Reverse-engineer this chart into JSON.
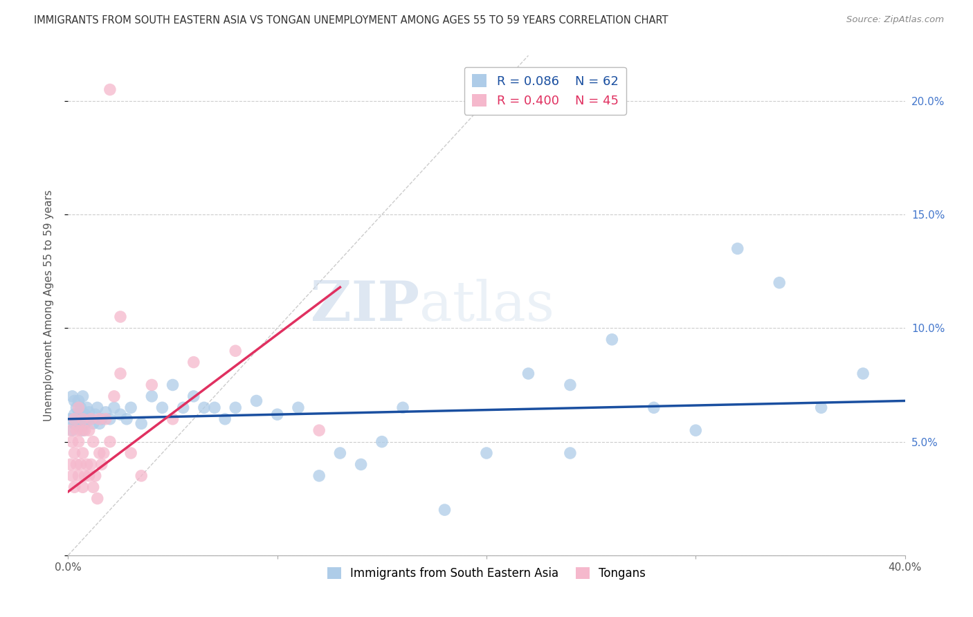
{
  "title": "IMMIGRANTS FROM SOUTH EASTERN ASIA VS TONGAN UNEMPLOYMENT AMONG AGES 55 TO 59 YEARS CORRELATION CHART",
  "source": "Source: ZipAtlas.com",
  "ylabel": "Unemployment Among Ages 55 to 59 years",
  "xlim": [
    0,
    0.4
  ],
  "ylim": [
    0,
    0.22
  ],
  "x_ticks": [
    0.0,
    0.1,
    0.2,
    0.3,
    0.4
  ],
  "x_tick_labels": [
    "0.0%",
    "",
    "",
    "",
    "40.0%"
  ],
  "y_ticks": [
    0.0,
    0.05,
    0.1,
    0.15,
    0.2
  ],
  "y_tick_labels_right": [
    "",
    "5.0%",
    "10.0%",
    "15.0%",
    "20.0%"
  ],
  "blue_R": 0.086,
  "blue_N": 62,
  "pink_R": 0.4,
  "pink_N": 45,
  "blue_color": "#aecce8",
  "pink_color": "#f5b8cc",
  "blue_line_color": "#1a4fa0",
  "pink_line_color": "#e03060",
  "diagonal_color": "#cccccc",
  "blue_x": [
    0.001,
    0.002,
    0.002,
    0.003,
    0.003,
    0.003,
    0.004,
    0.004,
    0.005,
    0.005,
    0.005,
    0.006,
    0.006,
    0.007,
    0.007,
    0.008,
    0.008,
    0.009,
    0.009,
    0.01,
    0.011,
    0.012,
    0.013,
    0.014,
    0.015,
    0.016,
    0.018,
    0.02,
    0.022,
    0.025,
    0.028,
    0.03,
    0.035,
    0.04,
    0.045,
    0.05,
    0.055,
    0.06,
    0.065,
    0.07,
    0.075,
    0.08,
    0.09,
    0.1,
    0.11,
    0.12,
    0.13,
    0.14,
    0.15,
    0.16,
    0.18,
    0.2,
    0.22,
    0.24,
    0.28,
    0.3,
    0.32,
    0.34,
    0.36,
    0.38,
    0.24,
    0.26
  ],
  "blue_y": [
    0.06,
    0.055,
    0.07,
    0.062,
    0.058,
    0.068,
    0.06,
    0.065,
    0.058,
    0.062,
    0.068,
    0.06,
    0.065,
    0.055,
    0.07,
    0.062,
    0.058,
    0.065,
    0.06,
    0.063,
    0.06,
    0.058,
    0.062,
    0.065,
    0.058,
    0.06,
    0.063,
    0.06,
    0.065,
    0.062,
    0.06,
    0.065,
    0.058,
    0.07,
    0.065,
    0.075,
    0.065,
    0.07,
    0.065,
    0.065,
    0.06,
    0.065,
    0.068,
    0.062,
    0.065,
    0.035,
    0.045,
    0.04,
    0.05,
    0.065,
    0.02,
    0.045,
    0.08,
    0.045,
    0.065,
    0.055,
    0.135,
    0.12,
    0.065,
    0.08,
    0.075,
    0.095
  ],
  "pink_x": [
    0.001,
    0.001,
    0.002,
    0.002,
    0.003,
    0.003,
    0.003,
    0.004,
    0.004,
    0.005,
    0.005,
    0.005,
    0.006,
    0.006,
    0.007,
    0.007,
    0.007,
    0.008,
    0.008,
    0.009,
    0.01,
    0.01,
    0.011,
    0.011,
    0.012,
    0.012,
    0.013,
    0.014,
    0.015,
    0.015,
    0.016,
    0.017,
    0.018,
    0.02,
    0.022,
    0.025,
    0.03,
    0.035,
    0.04,
    0.05,
    0.06,
    0.08,
    0.12,
    0.025,
    0.02
  ],
  "pink_y": [
    0.055,
    0.04,
    0.035,
    0.05,
    0.03,
    0.045,
    0.06,
    0.04,
    0.055,
    0.035,
    0.05,
    0.065,
    0.04,
    0.055,
    0.03,
    0.045,
    0.06,
    0.035,
    0.055,
    0.04,
    0.035,
    0.055,
    0.04,
    0.06,
    0.03,
    0.05,
    0.035,
    0.025,
    0.045,
    0.06,
    0.04,
    0.045,
    0.06,
    0.05,
    0.07,
    0.08,
    0.045,
    0.035,
    0.075,
    0.06,
    0.085,
    0.09,
    0.055,
    0.105,
    0.205
  ],
  "watermark_zip": "ZIP",
  "watermark_atlas": "atlas",
  "legend_blue_label": "Immigrants from South Eastern Asia",
  "legend_pink_label": "Tongans"
}
